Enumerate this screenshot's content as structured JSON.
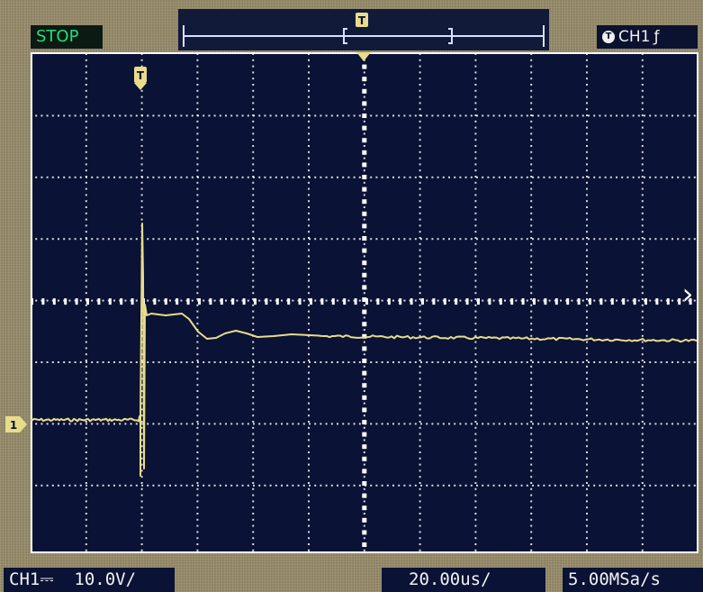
{
  "status": {
    "label": "STOP"
  },
  "trigger": {
    "channel": "CH1",
    "badge": "T",
    "slope_symbol": "ƒ"
  },
  "memory": {
    "trigger_badge": "T"
  },
  "scales": {
    "channel_label": "CH1",
    "coupling_symbol": "⎓",
    "volts_per_div": "10.0V/",
    "time_per_div": "20.00us/",
    "sample_rate": "5.00MSa/s"
  },
  "channel_marker": {
    "label": "1"
  },
  "waveform": {
    "color": "#e8dc8a",
    "grid_color": "#ffffff",
    "background": "#0a1235"
  },
  "nav": {
    "next_icon": "›"
  }
}
